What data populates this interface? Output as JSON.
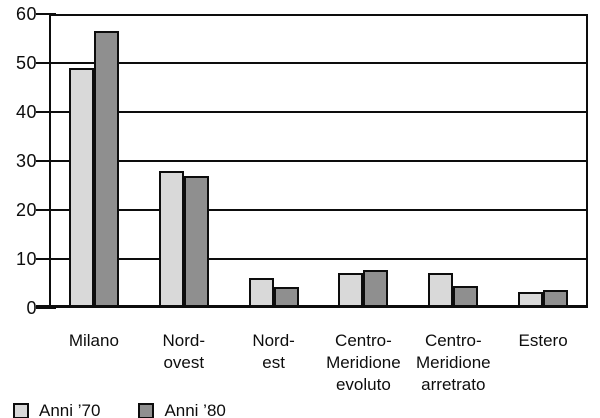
{
  "chart_data": {
    "type": "bar",
    "title": "",
    "categories": [
      "Milano",
      "Nord-\novest",
      "Nord-\nest",
      "Centro-\nMeridione\nevoluto",
      "Centro-\nMeridione\narretrato",
      "Estero"
    ],
    "series": [
      {
        "name": "Anni ’70",
        "color": "#d9d9d9",
        "values": [
          49,
          28,
          6.2,
          7.2,
          7.2,
          3.2
        ]
      },
      {
        "name": "Anni ’80",
        "color": "#8f8f8f",
        "values": [
          56.5,
          27,
          4.2,
          7.7,
          4.6,
          3.7
        ]
      }
    ],
    "xlabel": "",
    "ylabel": "",
    "ylim": [
      0,
      60
    ],
    "yticks": [
      0,
      10,
      20,
      30,
      40,
      50,
      60
    ],
    "grid": true,
    "legend_position": "bottom-left",
    "colors": {
      "axis": "#0d0d0d",
      "background": "#ffffff",
      "bar_border": "#0d0d0d"
    }
  }
}
